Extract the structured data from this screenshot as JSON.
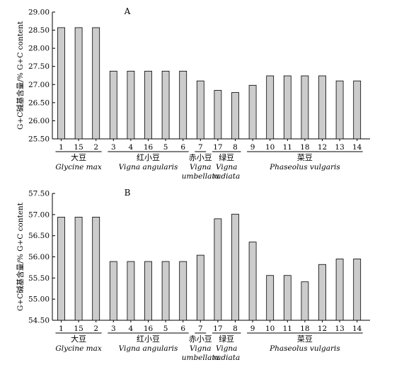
{
  "ylabel": "G+C碱基含量/%  G+C content",
  "group_labels": [
    {
      "cn": "大豆",
      "latin": [
        "Glycine max"
      ],
      "members": [
        0,
        2
      ]
    },
    {
      "cn": "红小豆",
      "latin": [
        "Vigna angularis"
      ],
      "members": [
        3,
        7
      ]
    },
    {
      "cn": "赤小豆",
      "latin": [
        "Vigna",
        "umbellata"
      ],
      "members": [
        8,
        8
      ]
    },
    {
      "cn": "绿豆",
      "latin": [
        "Vigna",
        "radiata"
      ],
      "members": [
        9,
        10
      ]
    },
    {
      "cn": "菜豆",
      "latin": [
        "Phaseolus vulgaris"
      ],
      "members": [
        11,
        17
      ]
    }
  ],
  "chart_data": [
    {
      "type": "bar",
      "title": "A",
      "categories": [
        "1",
        "15",
        "2",
        "3",
        "4",
        "16",
        "5",
        "6",
        "7",
        "17",
        "8",
        "9",
        "10",
        "11",
        "18",
        "12",
        "13",
        "14"
      ],
      "values": [
        28.57,
        28.57,
        28.57,
        27.37,
        27.37,
        27.37,
        27.37,
        27.37,
        27.1,
        26.84,
        26.78,
        26.98,
        27.24,
        27.24,
        27.24,
        27.24,
        27.1,
        27.1
      ],
      "ylim": [
        25.5,
        29.0
      ],
      "yticks": [
        "25.50",
        "26.00",
        "26.50",
        "27.00",
        "27.50",
        "28.00",
        "28.50",
        "29.00"
      ],
      "bar_color": "#cccccc"
    },
    {
      "type": "bar",
      "title": "B",
      "categories": [
        "1",
        "15",
        "2",
        "3",
        "4",
        "16",
        "5",
        "6",
        "7",
        "17",
        "8",
        "9",
        "10",
        "11",
        "18",
        "12",
        "13",
        "14"
      ],
      "values": [
        56.94,
        56.94,
        56.94,
        55.89,
        55.89,
        55.89,
        55.89,
        55.89,
        56.04,
        56.9,
        57.01,
        56.35,
        55.56,
        55.56,
        55.41,
        55.82,
        55.95,
        55.95
      ],
      "ylim": [
        54.5,
        57.5
      ],
      "yticks": [
        "54.50",
        "55.00",
        "55.50",
        "56.00",
        "56.50",
        "57.00",
        "57.50"
      ],
      "bar_color": "#cccccc"
    }
  ]
}
